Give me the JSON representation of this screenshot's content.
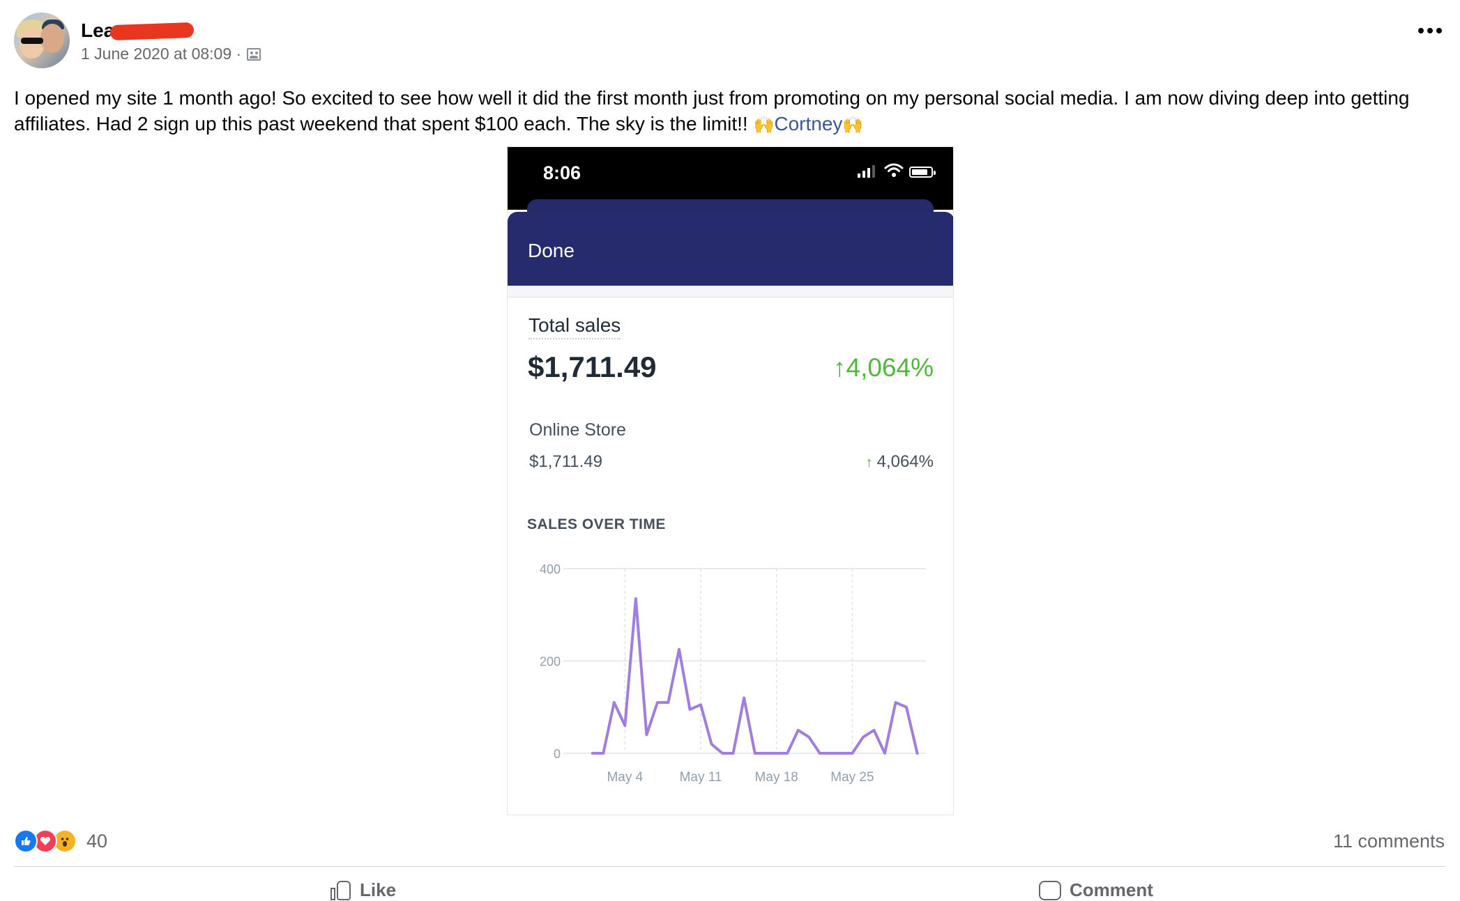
{
  "post": {
    "author": "Lea",
    "date": "1 June 2020 at 08:09 ·",
    "audience_icon": "group-audience-icon",
    "text": "I opened my site 1 month ago! So excited to see how well it did the first month just from promoting on my personal social media. I am now diving deep into getting affiliates. Had 2 sign up this past weekend that spent $100 each. The sky is the limit!! ",
    "emoji": "🙌",
    "mention": "Cortney",
    "more_icon": "more-options-icon"
  },
  "phone": {
    "time": "8:06",
    "done_label": "Done",
    "total_sales_label": "Total sales",
    "total_sales_value": "$1,711.49",
    "total_sales_change": "4,064%",
    "online_store_label": "Online Store",
    "online_store_value": "$1,711.49",
    "online_store_change": "4,064%",
    "sales_over_time_label": "SALES OVER TIME",
    "colors": {
      "nav": "#262b6d",
      "line": "#a07ee0",
      "up": "#50b83c"
    }
  },
  "chart_data": {
    "type": "line",
    "title": "SALES OVER TIME",
    "xlabel": "",
    "ylabel": "",
    "ylim": [
      0,
      400
    ],
    "yticks": [
      0,
      200,
      400
    ],
    "xticks": [
      "May 4",
      "May 11",
      "May 18",
      "May 25"
    ],
    "xtick_days": [
      4,
      11,
      18,
      25
    ],
    "grid": true,
    "series": [
      {
        "x": [
          1,
          2,
          3,
          4,
          5,
          6,
          7,
          8,
          9,
          10,
          11,
          12,
          13,
          14,
          15,
          16,
          17,
          18,
          19,
          20,
          21,
          22,
          23,
          24,
          25,
          26,
          27,
          28,
          29,
          30,
          31
        ],
        "values": [
          0,
          0,
          110,
          60,
          335,
          40,
          110,
          110,
          225,
          95,
          105,
          20,
          0,
          0,
          120,
          0,
          0,
          0,
          0,
          50,
          35,
          0,
          0,
          0,
          0,
          35,
          50,
          0,
          110,
          100,
          0
        ]
      }
    ]
  },
  "footer": {
    "reaction_count": "40",
    "comments": "11 comments",
    "like_label": "Like",
    "comment_label": "Comment"
  }
}
